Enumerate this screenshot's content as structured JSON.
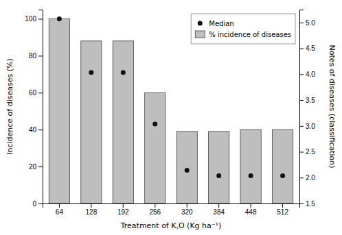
{
  "chart_data": {
    "type": "bar",
    "categories": [
      "64",
      "128",
      "192",
      "256",
      "320",
      "384",
      "448",
      "512"
    ],
    "series": [
      {
        "name": "% incidence of diseases",
        "type": "bar",
        "color": "#bebebe",
        "values": [
          100,
          88,
          88,
          60,
          39,
          39,
          40,
          40
        ]
      },
      {
        "name": "Median",
        "type": "scatter",
        "marker": "circle",
        "color": "#111111",
        "values": [
          100,
          71,
          71,
          43,
          18,
          15,
          15,
          15
        ]
      }
    ],
    "xlabel": "Treatment of K,O (Kg ha⁻¹)",
    "ylabel": "Incidence of diseases (%)",
    "y2label": "Notes of diseases (classification)",
    "ylim": [
      0,
      105
    ],
    "yticks": [
      0,
      20,
      40,
      60,
      80,
      100
    ],
    "y2lim": [
      1.5,
      5.25
    ],
    "y2ticks": [
      1.5,
      {
        "value": 2,
        "label": "2.0"
      },
      2.5,
      {
        "value": 3,
        "label": "3.0"
      },
      3.5,
      {
        "value": 4,
        "label": "4.0"
      },
      4.5,
      {
        "value": 5,
        "label": "5.0"
      }
    ],
    "legend": "upper right",
    "grid": false
  }
}
